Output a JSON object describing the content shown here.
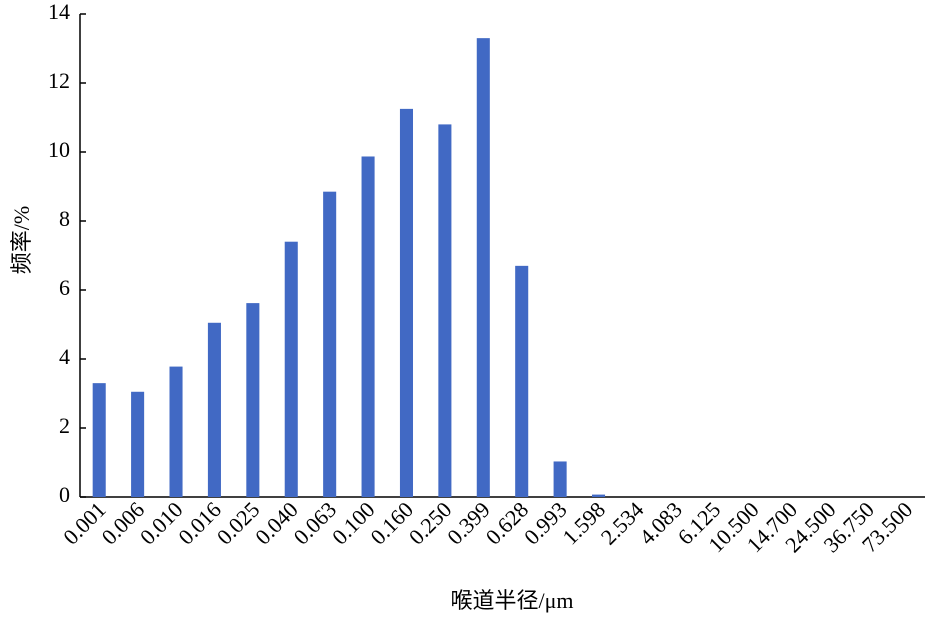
{
  "chart_data": {
    "type": "bar",
    "x_label": "喉道半径/μm",
    "y_label": "频率/%",
    "categories": [
      "0.001",
      "0.006",
      "0.010",
      "0.016",
      "0.025",
      "0.040",
      "0.063",
      "0.100",
      "0.160",
      "0.250",
      "0.399",
      "0.628",
      "0.993",
      "1.598",
      "2.534",
      "4.083",
      "6.125",
      "10.500",
      "14.700",
      "24.500",
      "36.750",
      "73.500"
    ],
    "values": [
      3.3,
      3.05,
      3.78,
      5.05,
      5.62,
      7.4,
      8.85,
      9.87,
      11.25,
      10.8,
      13.3,
      6.7,
      1.03,
      0.07,
      0,
      0,
      0,
      0,
      0,
      0,
      0,
      0
    ],
    "color": "#4169c4",
    "ylim": [
      0,
      14
    ],
    "yticks": [
      0,
      2,
      4,
      6,
      8,
      10,
      12,
      14
    ]
  }
}
